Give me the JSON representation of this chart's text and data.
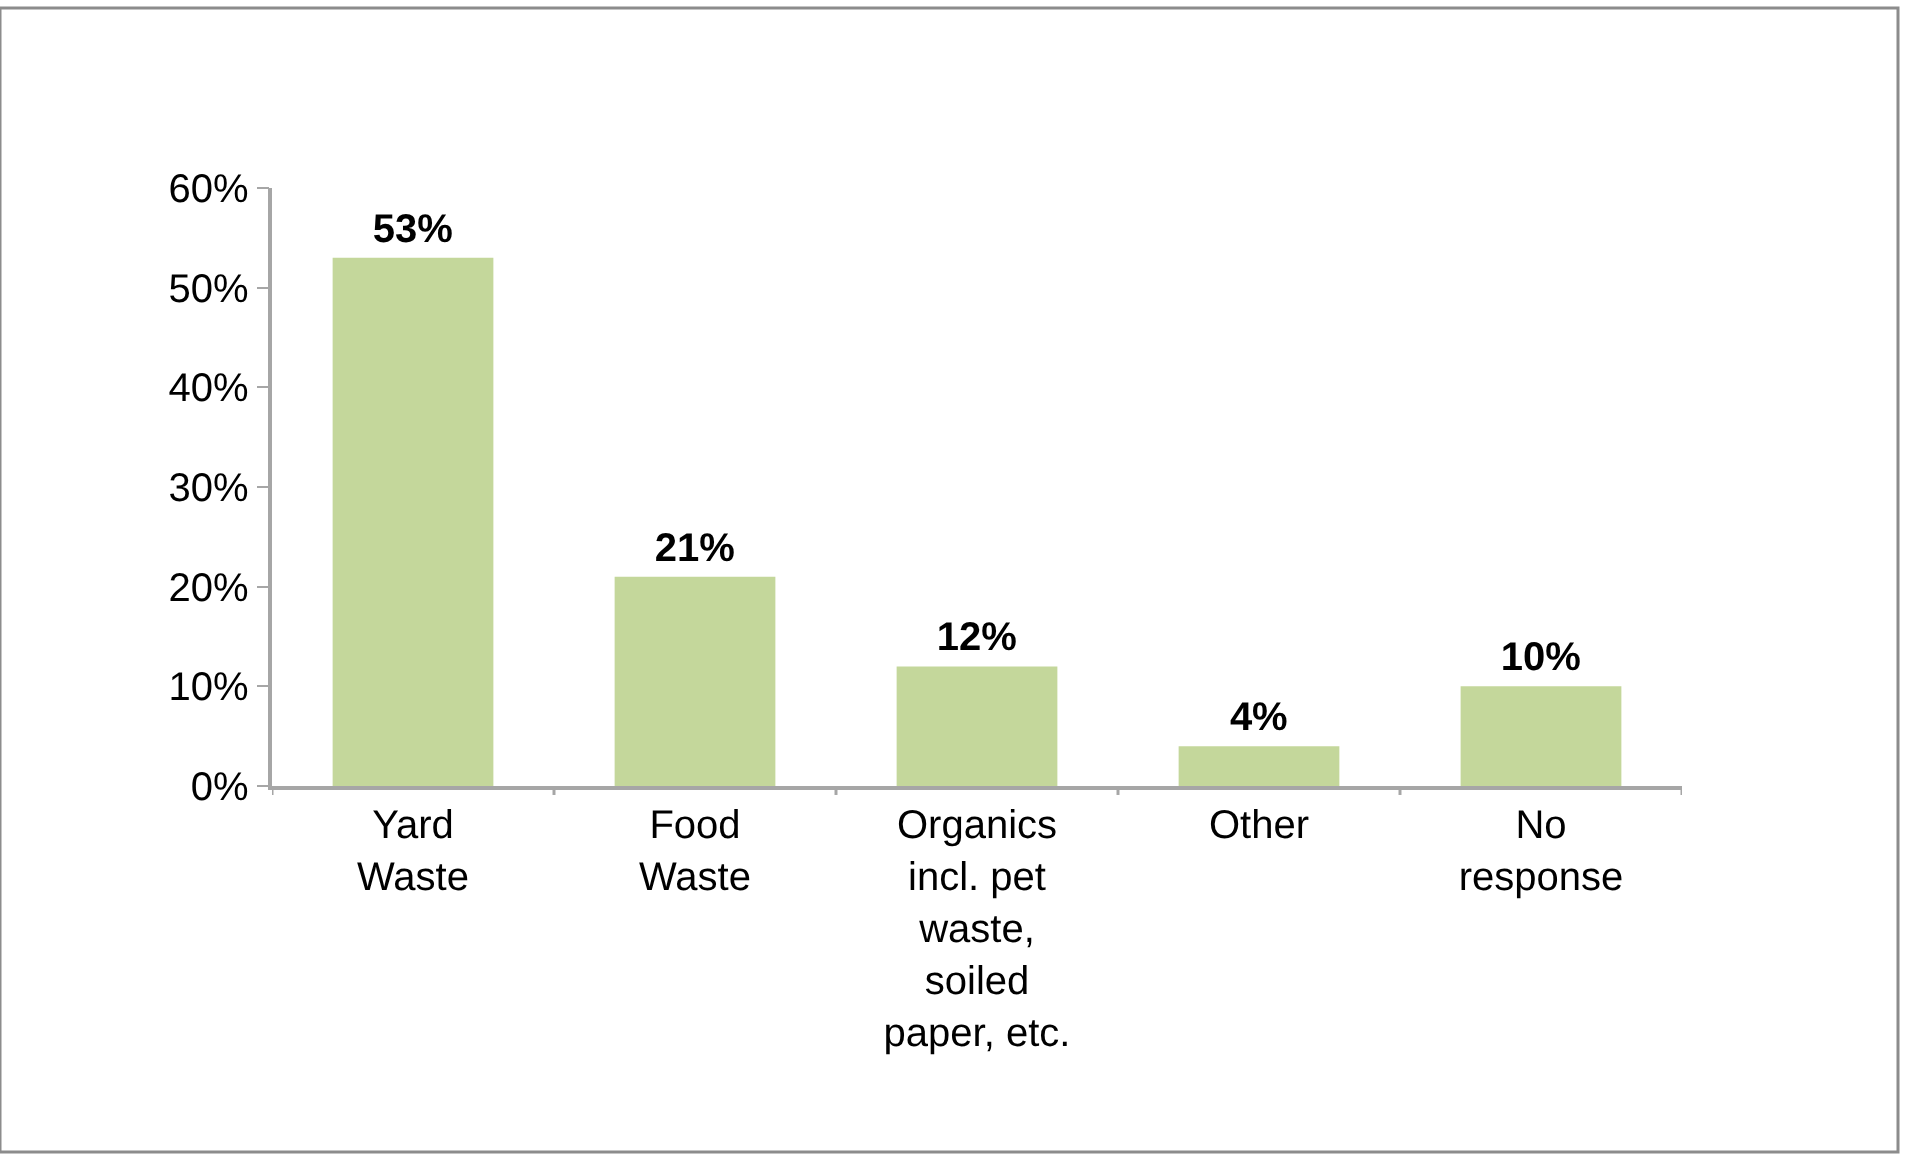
{
  "chart_data": {
    "type": "bar",
    "categories": [
      "Yard\nWaste",
      "Food\nWaste",
      "Organics\nincl. pet\nwaste,\nsoiled\npaper, etc.",
      "Other",
      "No\nresponse"
    ],
    "values": [
      53,
      21,
      12,
      4,
      10
    ],
    "value_labels": [
      "53%",
      "21%",
      "12%",
      "4%",
      "10%"
    ],
    "color": "#c4d79b",
    "ylim": [
      0,
      60
    ],
    "yticks": [
      {
        "value": 0,
        "label": "0%"
      },
      {
        "value": 10,
        "label": "10%"
      },
      {
        "value": 20,
        "label": "20%"
      },
      {
        "value": 30,
        "label": "30%"
      },
      {
        "value": 40,
        "label": "40%"
      },
      {
        "value": 50,
        "label": "50%"
      },
      {
        "value": 60,
        "label": "60%"
      }
    ]
  }
}
